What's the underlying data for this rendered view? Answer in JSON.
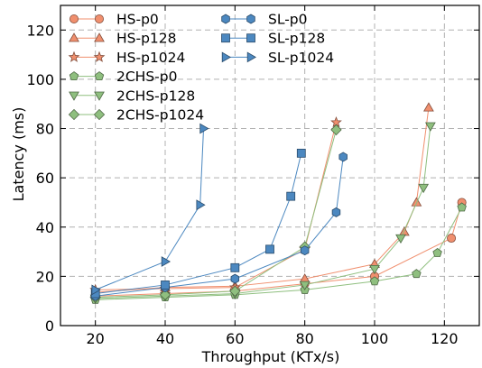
{
  "chart_data": {
    "type": "line",
    "xlabel": "Throughput (KTx/s)",
    "ylabel": "Latency (ms)",
    "xlim": [
      10,
      130
    ],
    "ylim": [
      0,
      130
    ],
    "x_ticks": [
      20,
      40,
      60,
      80,
      100,
      120
    ],
    "y_ticks": [
      0,
      20,
      40,
      60,
      80,
      100,
      120
    ],
    "grid": true,
    "legend_position": "top-left",
    "series": [
      {
        "name": "HS-p0",
        "color": "#f08f6e",
        "marker": "circle",
        "x": [
          20,
          40,
          60,
          80,
          100,
          122,
          125
        ],
        "y": [
          12,
          13,
          14,
          17,
          20,
          35.5,
          50
        ]
      },
      {
        "name": "HS-p128",
        "color": "#f08f6e",
        "marker": "triangle-up",
        "x": [
          20,
          40,
          60,
          80,
          100,
          108.5,
          112,
          115.5
        ],
        "y": [
          13.5,
          15.5,
          16,
          19,
          25,
          38,
          50,
          88.5
        ]
      },
      {
        "name": "HS-p1024",
        "color": "#f08f6e",
        "marker": "star",
        "x": [
          20,
          40,
          60,
          80,
          89
        ],
        "y": [
          14.5,
          15,
          15.5,
          31,
          82.5
        ]
      },
      {
        "name": "2CHS-p0",
        "color": "#8fbf7f",
        "marker": "pentagon",
        "x": [
          20,
          40,
          60,
          80,
          100,
          112,
          118,
          125
        ],
        "y": [
          10.5,
          11.5,
          12.5,
          14.5,
          18,
          21,
          29.5,
          48
        ]
      },
      {
        "name": "2CHS-p128",
        "color": "#8fbf7f",
        "marker": "triangle-down",
        "x": [
          20,
          40,
          60,
          80,
          100,
          107.5,
          114,
          116
        ],
        "y": [
          11,
          12,
          13,
          16.5,
          23,
          35.5,
          56,
          81
        ]
      },
      {
        "name": "2CHS-p1024",
        "color": "#8fbf7f",
        "marker": "diamond",
        "x": [
          20,
          40,
          60,
          80,
          89
        ],
        "y": [
          11.5,
          12.5,
          14,
          32,
          79.5
        ]
      },
      {
        "name": "SL-p0",
        "color": "#4c88c0",
        "marker": "hexagon",
        "x": [
          20,
          40,
          60,
          80,
          89,
          91
        ],
        "y": [
          12,
          15.5,
          19,
          30.5,
          46,
          68.5
        ]
      },
      {
        "name": "SL-p128",
        "color": "#4c88c0",
        "marker": "square",
        "x": [
          20,
          40,
          60,
          70,
          76,
          79
        ],
        "y": [
          13,
          16.5,
          23.5,
          31,
          52.5,
          70
        ]
      },
      {
        "name": "SL-p1024",
        "color": "#4c88c0",
        "marker": "triangle-right",
        "x": [
          20,
          40,
          50,
          51
        ],
        "y": [
          14.5,
          26,
          49,
          80
        ]
      }
    ]
  }
}
